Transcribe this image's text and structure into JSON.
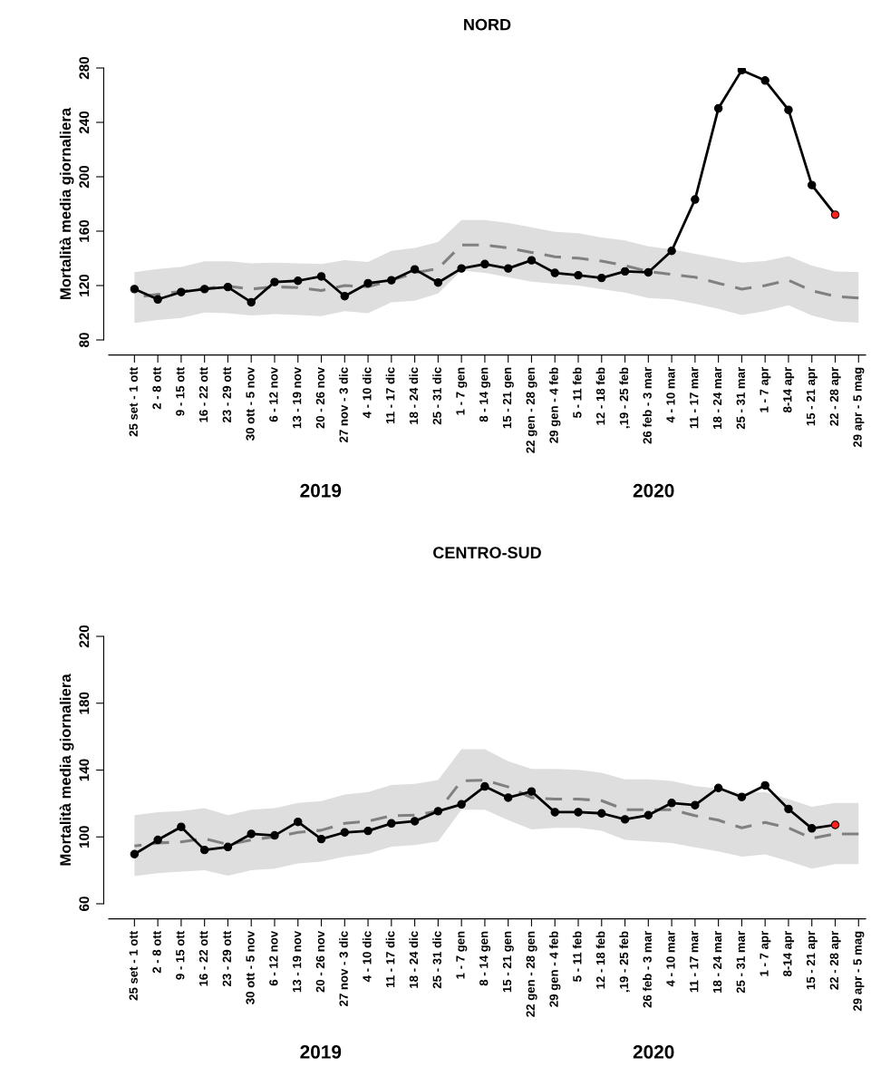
{
  "chart_data": [
    {
      "type": "line",
      "title": "NORD",
      "ylabel": "Mortalità media giornaliera",
      "categories": [
        "25 set - 1 ott",
        "2 - 8 ott",
        "9 - 15 ott",
        "16 - 22 ott",
        "23 - 29 ott",
        "30 ott - 5 nov",
        "6 - 12 nov",
        "13 - 19 nov",
        "20 - 26 nov",
        "27 nov - 3 dic",
        "4 - 10 dic",
        "11 - 17 dic",
        "18 - 24 dic",
        "25 - 31 dic",
        "1 - 7 gen",
        "8 - 14 gen",
        "15 - 21 gen",
        "22 gen - 28 gen",
        "29 gen - 4 feb",
        "5 - 11 feb",
        "12 - 18 feb",
        ",19 - 25 feb",
        "26 feb - 3 mar",
        "4 - 10 mar",
        "11 - 17 mar",
        "18 - 24 mar",
        "25 - 31 mar",
        "1 - 7 apr",
        "8-14 apr",
        "15 - 21 apr",
        "22 - 28 apr",
        "29 apr - 5 mag"
      ],
      "series": [
        {
          "line_style": "dashed",
          "color": "#808080",
          "marker": "none",
          "values": [
            111.4,
            113.5,
            115.7,
            117.8,
            119.6,
            117.4,
            119.1,
            118.5,
            116.3,
            120,
            119.1,
            123.9,
            129.3,
            132.5,
            149.8,
            149.8,
            147.7,
            144.4,
            141.2,
            140.1,
            138,
            134.7,
            130.4,
            128.2,
            126.1,
            121.7,
            117.4,
            120,
            123.9,
            116.3,
            112,
            110.9
          ],
          "lower": [
            92.5,
            94.7,
            96.2,
            100.1,
            99.7,
            98,
            99,
            98.4,
            97.5,
            101.2,
            99.7,
            107.7,
            108.8,
            114.2,
            131,
            129.3,
            126.1,
            122.9,
            121.3,
            120,
            117.4,
            114.8,
            110.9,
            109.9,
            106.6,
            102.8,
            98.4,
            101.2,
            105.5,
            98,
            93.7,
            92.6
          ],
          "upper": [
            129.9,
            132.1,
            133.6,
            137.9,
            137.9,
            136.4,
            136.9,
            136.4,
            135.8,
            138.6,
            137.3,
            145.5,
            147.7,
            152,
            168.2,
            168.2,
            166,
            162.8,
            159.5,
            158.5,
            155.3,
            153.1,
            148.8,
            146.6,
            143.3,
            140.1,
            136.8,
            138,
            141.7,
            134.7,
            130.4,
            130
          ]
        },
        {
          "line_style": "solid",
          "color": "#000000",
          "marker": "circle",
          "colors": [
            "#000000",
            "#000000",
            "#000000",
            "#000000",
            "#000000",
            "#000000",
            "#000000",
            "#000000",
            "#000000",
            "#000000",
            "#000000",
            "#000000",
            "#000000",
            "#000000",
            "#000000",
            "#000000",
            "#000000",
            "#000000",
            "#000000",
            "#000000",
            "#000000",
            "#000000",
            "#000000",
            "#000000",
            "#000000",
            "#000000",
            "#000000",
            "#000000",
            "#000000",
            "#000000",
            "#ff2020",
            null
          ],
          "values": [
            117.4,
            109.8,
            115.2,
            117.4,
            118.9,
            107.7,
            122.6,
            123.5,
            126.7,
            112.2,
            121.7,
            123.9,
            131.9,
            122.2,
            132.6,
            135.8,
            132.6,
            138.6,
            129.3,
            127.6,
            125.6,
            130.4,
            129.7,
            145.5,
            183.3,
            250.3,
            278.4,
            270.8,
            249.2,
            193.9,
            172.1,
            null
          ]
        }
      ],
      "ylim": [
        80,
        280
      ],
      "yticks": [
        80,
        120,
        160,
        200,
        240,
        280
      ],
      "annotations": [
        "2019",
        "2020"
      ]
    },
    {
      "type": "line",
      "title": "CENTRO-SUD",
      "ylabel": "Mortalità media giornaliera",
      "categories": [
        "25 set - 1 ott",
        "2 - 8 ott",
        "9 - 15 ott",
        "16 - 22 ott",
        "23 - 29 ott",
        "30 ott - 5 nov",
        "6 - 12 nov",
        "13 - 19 nov",
        "20 - 26 nov",
        "27 nov - 3 dic",
        "4 - 10 dic",
        "11 - 17 dic",
        "18 - 24 dic",
        "25 - 31 dic",
        "1 - 7 gen",
        "8 - 14 gen",
        "15 - 21 gen",
        "22 gen - 28 gen",
        "29 gen - 4 feb",
        "5 - 11 feb",
        "12 - 18 feb",
        ",19 - 25 feb",
        "26 feb - 3 mar",
        "4 - 10 mar",
        "11 - 17 mar",
        "18 - 24 mar",
        "25 - 31 mar",
        "1 - 7 apr",
        "8-14 apr",
        "15 - 21 apr",
        "22 - 28 apr",
        "29 apr - 5 mag"
      ],
      "series": [
        {
          "line_style": "dashed",
          "color": "#808080",
          "marker": "none",
          "values": [
            94.6,
            96.4,
            97,
            99,
            95.5,
            98.2,
            100,
            102.7,
            104,
            108.1,
            109.4,
            112.7,
            113,
            115.4,
            133.5,
            134,
            129.9,
            123.5,
            122.6,
            122.6,
            121.7,
            116.3,
            116.3,
            116.3,
            112.7,
            110,
            105.4,
            108.7,
            105.4,
            99.1,
            101.8,
            101.8
          ],
          "lower": [
            76.5,
            78.3,
            79.2,
            80.1,
            76.8,
            80.1,
            81,
            84.1,
            85.2,
            88.2,
            90,
            94.2,
            95.1,
            97.3,
            116.3,
            116.3,
            110,
            104.5,
            105.4,
            105.4,
            103.6,
            98.2,
            97.3,
            96.4,
            93.7,
            91.3,
            88.2,
            89.5,
            85.5,
            81,
            83.7,
            83.7
          ],
          "upper": [
            113,
            114.8,
            115.4,
            117.2,
            113,
            116.3,
            117.2,
            120.3,
            121.4,
            125.3,
            126.8,
            131.1,
            131.7,
            134,
            152.5,
            152.5,
            145.3,
            140.7,
            140.7,
            140.2,
            138.4,
            134.4,
            134.4,
            133.5,
            130.4,
            129,
            126.2,
            126.8,
            122.6,
            118.1,
            120.3,
            120.3
          ]
        },
        {
          "line_style": "solid",
          "color": "#000000",
          "marker": "circle",
          "colors": [
            "#000000",
            "#000000",
            "#000000",
            "#000000",
            "#000000",
            "#000000",
            "#000000",
            "#000000",
            "#000000",
            "#000000",
            "#000000",
            "#000000",
            "#000000",
            "#000000",
            "#000000",
            "#000000",
            "#000000",
            "#000000",
            "#000000",
            "#000000",
            "#000000",
            "#000000",
            "#000000",
            "#000000",
            "#000000",
            "#000000",
            "#000000",
            "#000000",
            "#000000",
            "#000000",
            "#ff2020",
            null
          ],
          "values": [
            89.7,
            98.2,
            106,
            92.2,
            94,
            101.8,
            100.9,
            109,
            98.7,
            102.7,
            103.6,
            108.1,
            109.4,
            115.4,
            119.5,
            130.2,
            123.5,
            127.2,
            114.8,
            114.8,
            114.1,
            110.5,
            113,
            120.3,
            119,
            129.3,
            123.9,
            130.8,
            116.7,
            105.1,
            107.2,
            null
          ]
        }
      ],
      "ylim": [
        60,
        220
      ],
      "yticks": [
        60,
        100,
        140,
        180,
        220
      ],
      "annotations": [
        "2019",
        "2020"
      ]
    }
  ]
}
